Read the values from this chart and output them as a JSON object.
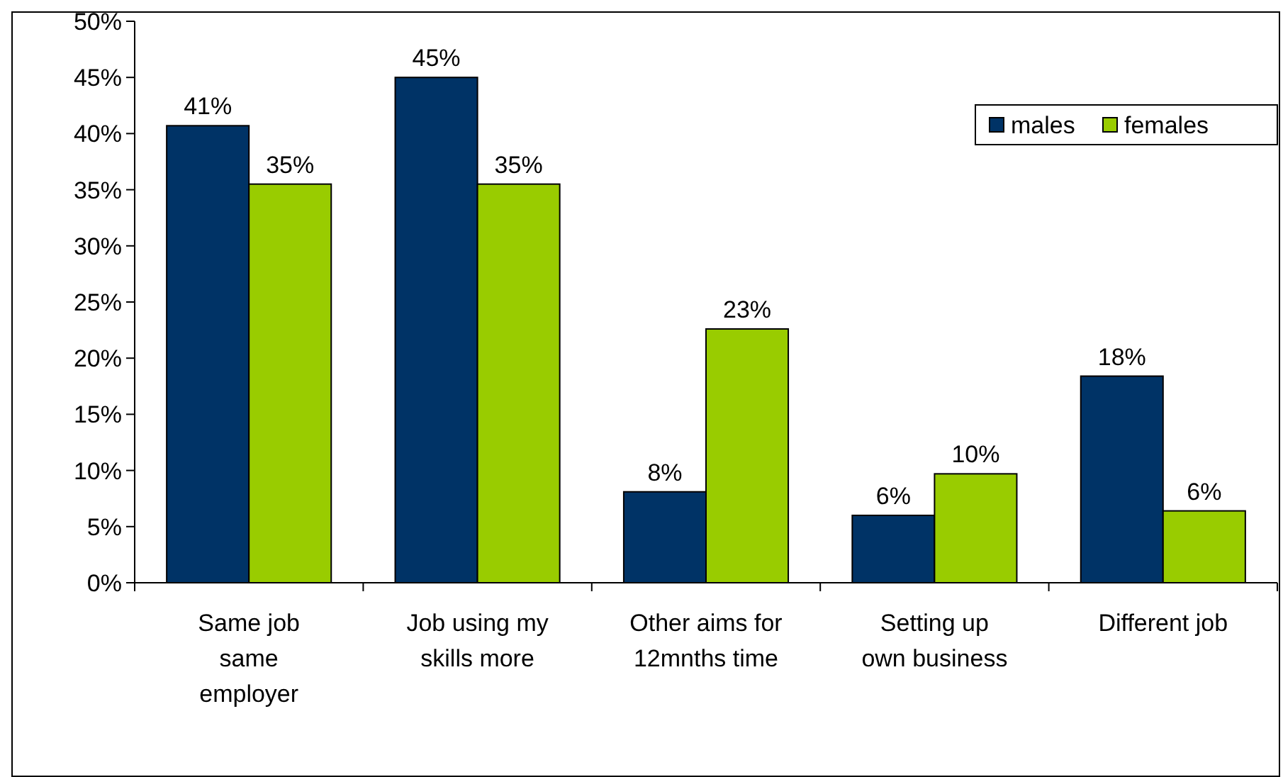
{
  "chart_data": {
    "type": "bar",
    "categories": [
      "Same job\nsame\nemployer",
      "Job using my\nskills more",
      "Other aims for\n12mnths time",
      "Setting up\nown business",
      "Different job"
    ],
    "series": [
      {
        "name": "males",
        "color": "#003366",
        "values": [
          40.7,
          45,
          8.1,
          6,
          18.4
        ],
        "value_labels": [
          "41%",
          "45%",
          "8%",
          "6%",
          "18%"
        ]
      },
      {
        "name": "females",
        "color": "#99cc00",
        "values": [
          35.5,
          35.5,
          22.6,
          9.7,
          6.4
        ],
        "value_labels": [
          "35%",
          "35%",
          "23%",
          "10%",
          "6%"
        ]
      }
    ],
    "ylim": [
      0,
      50
    ],
    "yticks": [
      {
        "value": 0,
        "label": "0%"
      },
      {
        "value": 5,
        "label": "5%"
      },
      {
        "value": 10,
        "label": "10%"
      },
      {
        "value": 15,
        "label": "15%"
      },
      {
        "value": 20,
        "label": "20%"
      },
      {
        "value": 25,
        "label": "25%"
      },
      {
        "value": 30,
        "label": "30%"
      },
      {
        "value": 35,
        "label": "35%"
      },
      {
        "value": 40,
        "label": "40%"
      },
      {
        "value": 45,
        "label": "45%"
      },
      {
        "value": 50,
        "label": "50%"
      }
    ],
    "legend": "top right"
  }
}
